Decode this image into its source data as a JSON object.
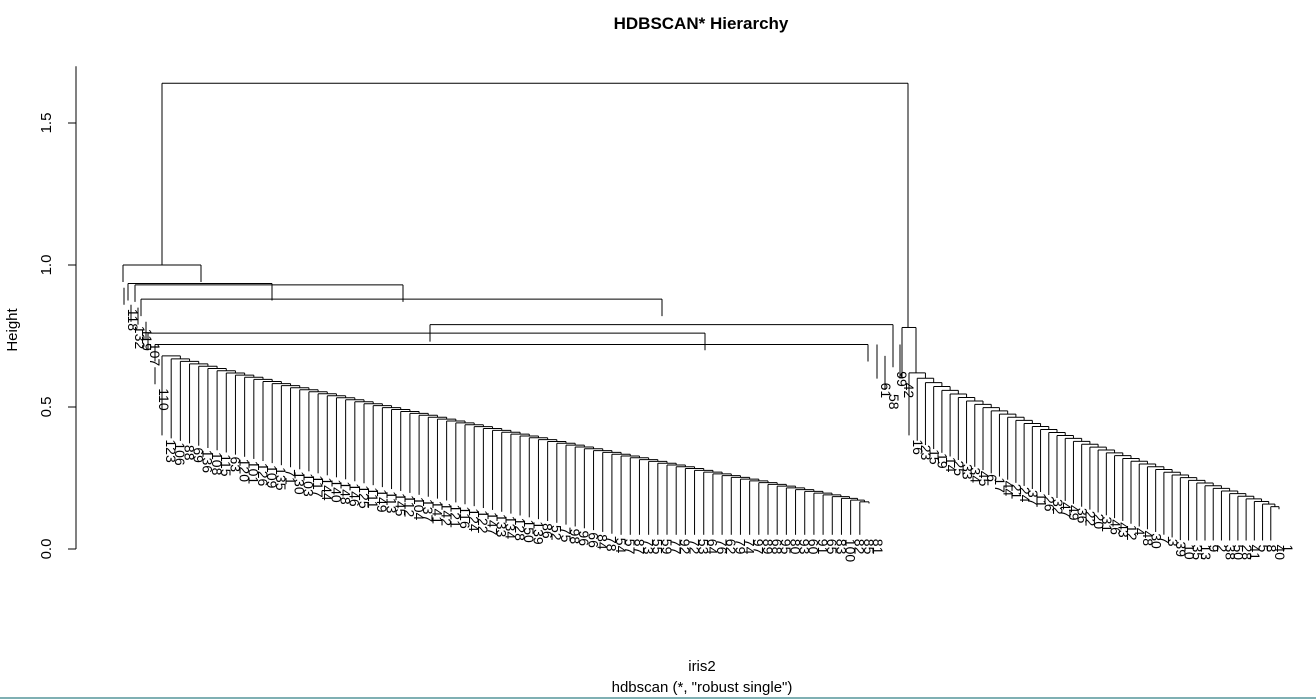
{
  "chart_data": {
    "type": "dendrogram",
    "title": "HDBSCAN* Hierarchy",
    "xlabel": "iris2",
    "sub": "hdbscan (*, \"robust single\")",
    "ylabel": "Height",
    "ylim": [
      0.0,
      1.7
    ],
    "yticks": [
      "0.0",
      "0.5",
      "1.0",
      "1.5"
    ],
    "yticks_values": [
      0.0,
      0.5,
      1.0,
      1.5
    ],
    "root_height": 1.64,
    "left_cluster": {
      "merge_heights": [
        1.0,
        0.93,
        0.88,
        0.79,
        0.75,
        0.72,
        0.68
      ],
      "outliers": [
        {
          "label": "118",
          "height": 0.86
        },
        {
          "label": "132",
          "height": 0.8
        },
        {
          "label": "119",
          "height": 0.79
        },
        {
          "label": "107",
          "height": 0.74
        },
        {
          "label": "110",
          "height": 0.58
        },
        {
          "label": "61",
          "height": 0.6
        },
        {
          "label": "58",
          "height": 0.56
        },
        {
          "label": "99",
          "height": 0.63
        },
        {
          "label": "42",
          "height": 0.6
        }
      ],
      "leaf_labels": [
        "123",
        "106",
        "88",
        "69",
        "136",
        "108",
        "115",
        "63",
        "120",
        "101",
        "126",
        "109",
        "135",
        "71",
        "130",
        "103",
        "117",
        "144",
        "140",
        "148",
        "146",
        "125",
        "111",
        "149",
        "113",
        "145",
        "112",
        "104",
        "137",
        "141",
        "142",
        "121",
        "116",
        "124",
        "122",
        "147",
        "133",
        "134",
        "128",
        "150",
        "139",
        "86",
        "52",
        "75",
        "98",
        "96",
        "66",
        "84",
        "78",
        "54",
        "57",
        "87",
        "73",
        "55",
        "59",
        "77",
        "92",
        "72",
        "53",
        "64",
        "76",
        "62",
        "79",
        "74",
        "97",
        "89",
        "68",
        "95",
        "80",
        "93",
        "60",
        "91",
        "65",
        "83",
        "100",
        "82",
        "85",
        "81"
      ]
    },
    "right_cluster": {
      "merge_height": 0.78,
      "leaf_labels": [
        "16",
        "23",
        "15",
        "19",
        "14",
        "25",
        "33",
        "34",
        "45",
        "6",
        "17",
        "44",
        "21",
        "24",
        "37",
        "11",
        "26",
        "32",
        "47",
        "49",
        "36",
        "22",
        "20",
        "31",
        "46",
        "43",
        "12",
        "4",
        "48",
        "30",
        "7",
        "3",
        "39",
        "10",
        "35",
        "13",
        "9",
        "2",
        "38",
        "50",
        "28",
        "41",
        "5",
        "8",
        "40",
        "1"
      ]
    }
  }
}
